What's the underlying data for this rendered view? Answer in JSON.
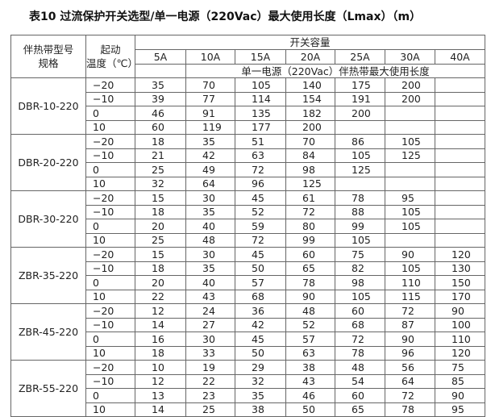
{
  "title": "表10 过流保护开关选型/单一电源（220Vac）最大使用长度（Lmax）（m）",
  "header": {
    "model_line1": "伴热带型号",
    "model_line2": "规格",
    "temp_line1": "起动",
    "temp_line2": "温度（℃）",
    "capacity": "开关容量",
    "subtitle": "单一电源（220Vac）伴热带最大使用长度",
    "columns": [
      "5A",
      "10A",
      "15A",
      "20A",
      "25A",
      "30A",
      "40A"
    ]
  },
  "groups": [
    {
      "model": "DBR-10-220",
      "rows": [
        {
          "t": "-20",
          "v": [
            "35",
            "70",
            "105",
            "140",
            "175",
            "200",
            ""
          ]
        },
        {
          "t": "-10",
          "v": [
            "39",
            "77",
            "114",
            "154",
            "191",
            "200",
            ""
          ]
        },
        {
          "t": "0",
          "v": [
            "46",
            "91",
            "135",
            "182",
            "200",
            "",
            ""
          ]
        },
        {
          "t": "10",
          "v": [
            "60",
            "119",
            "177",
            "200",
            "",
            "",
            ""
          ]
        }
      ]
    },
    {
      "model": "DBR-20-220",
      "rows": [
        {
          "t": "-20",
          "v": [
            "18",
            "35",
            "51",
            "70",
            "86",
            "105",
            ""
          ]
        },
        {
          "t": "-10",
          "v": [
            "21",
            "42",
            "63",
            "84",
            "105",
            "125",
            ""
          ]
        },
        {
          "t": "0",
          "v": [
            "25",
            "49",
            "72",
            "98",
            "125",
            "",
            ""
          ]
        },
        {
          "t": "10",
          "v": [
            "32",
            "64",
            "96",
            "125",
            "",
            "",
            ""
          ]
        }
      ]
    },
    {
      "model": "DBR-30-220",
      "rows": [
        {
          "t": "-20",
          "v": [
            "15",
            "30",
            "45",
            "61",
            "78",
            "95",
            ""
          ]
        },
        {
          "t": "-10",
          "v": [
            "18",
            "35",
            "52",
            "72",
            "88",
            "105",
            ""
          ]
        },
        {
          "t": "0",
          "v": [
            "20",
            "40",
            "59",
            "80",
            "99",
            "105",
            ""
          ]
        },
        {
          "t": "10",
          "v": [
            "25",
            "48",
            "72",
            "99",
            "105",
            "",
            ""
          ]
        }
      ]
    },
    {
      "model": "ZBR-35-220",
      "rows": [
        {
          "t": "-20",
          "v": [
            "15",
            "30",
            "45",
            "60",
            "75",
            "90",
            "120"
          ]
        },
        {
          "t": "-10",
          "v": [
            "18",
            "35",
            "50",
            "65",
            "82",
            "105",
            "130"
          ]
        },
        {
          "t": "0",
          "v": [
            "20",
            "40",
            "57",
            "78",
            "98",
            "110",
            "150"
          ]
        },
        {
          "t": "10",
          "v": [
            "22",
            "43",
            "68",
            "90",
            "105",
            "115",
            "170"
          ]
        }
      ]
    },
    {
      "model": "ZBR-45-220",
      "rows": [
        {
          "t": "-20",
          "v": [
            "12",
            "24",
            "36",
            "48",
            "60",
            "72",
            "90"
          ]
        },
        {
          "t": "-10",
          "v": [
            "14",
            "27",
            "42",
            "52",
            "68",
            "87",
            "100"
          ]
        },
        {
          "t": "0",
          "v": [
            "16",
            "30",
            "45",
            "57",
            "72",
            "90",
            "110"
          ]
        },
        {
          "t": "10",
          "v": [
            "18",
            "33",
            "50",
            "63",
            "78",
            "96",
            "120"
          ]
        }
      ]
    },
    {
      "model": "ZBR-55-220",
      "rows": [
        {
          "t": "-20",
          "v": [
            "10",
            "19",
            "29",
            "38",
            "48",
            "56",
            "75"
          ]
        },
        {
          "t": "-10",
          "v": [
            "12",
            "22",
            "32",
            "43",
            "54",
            "64",
            "85"
          ]
        },
        {
          "t": "0",
          "v": [
            "13",
            "23",
            "35",
            "46",
            "60",
            "72",
            "90"
          ]
        },
        {
          "t": "10",
          "v": [
            "14",
            "25",
            "38",
            "50",
            "65",
            "78",
            "95"
          ]
        }
      ]
    }
  ]
}
